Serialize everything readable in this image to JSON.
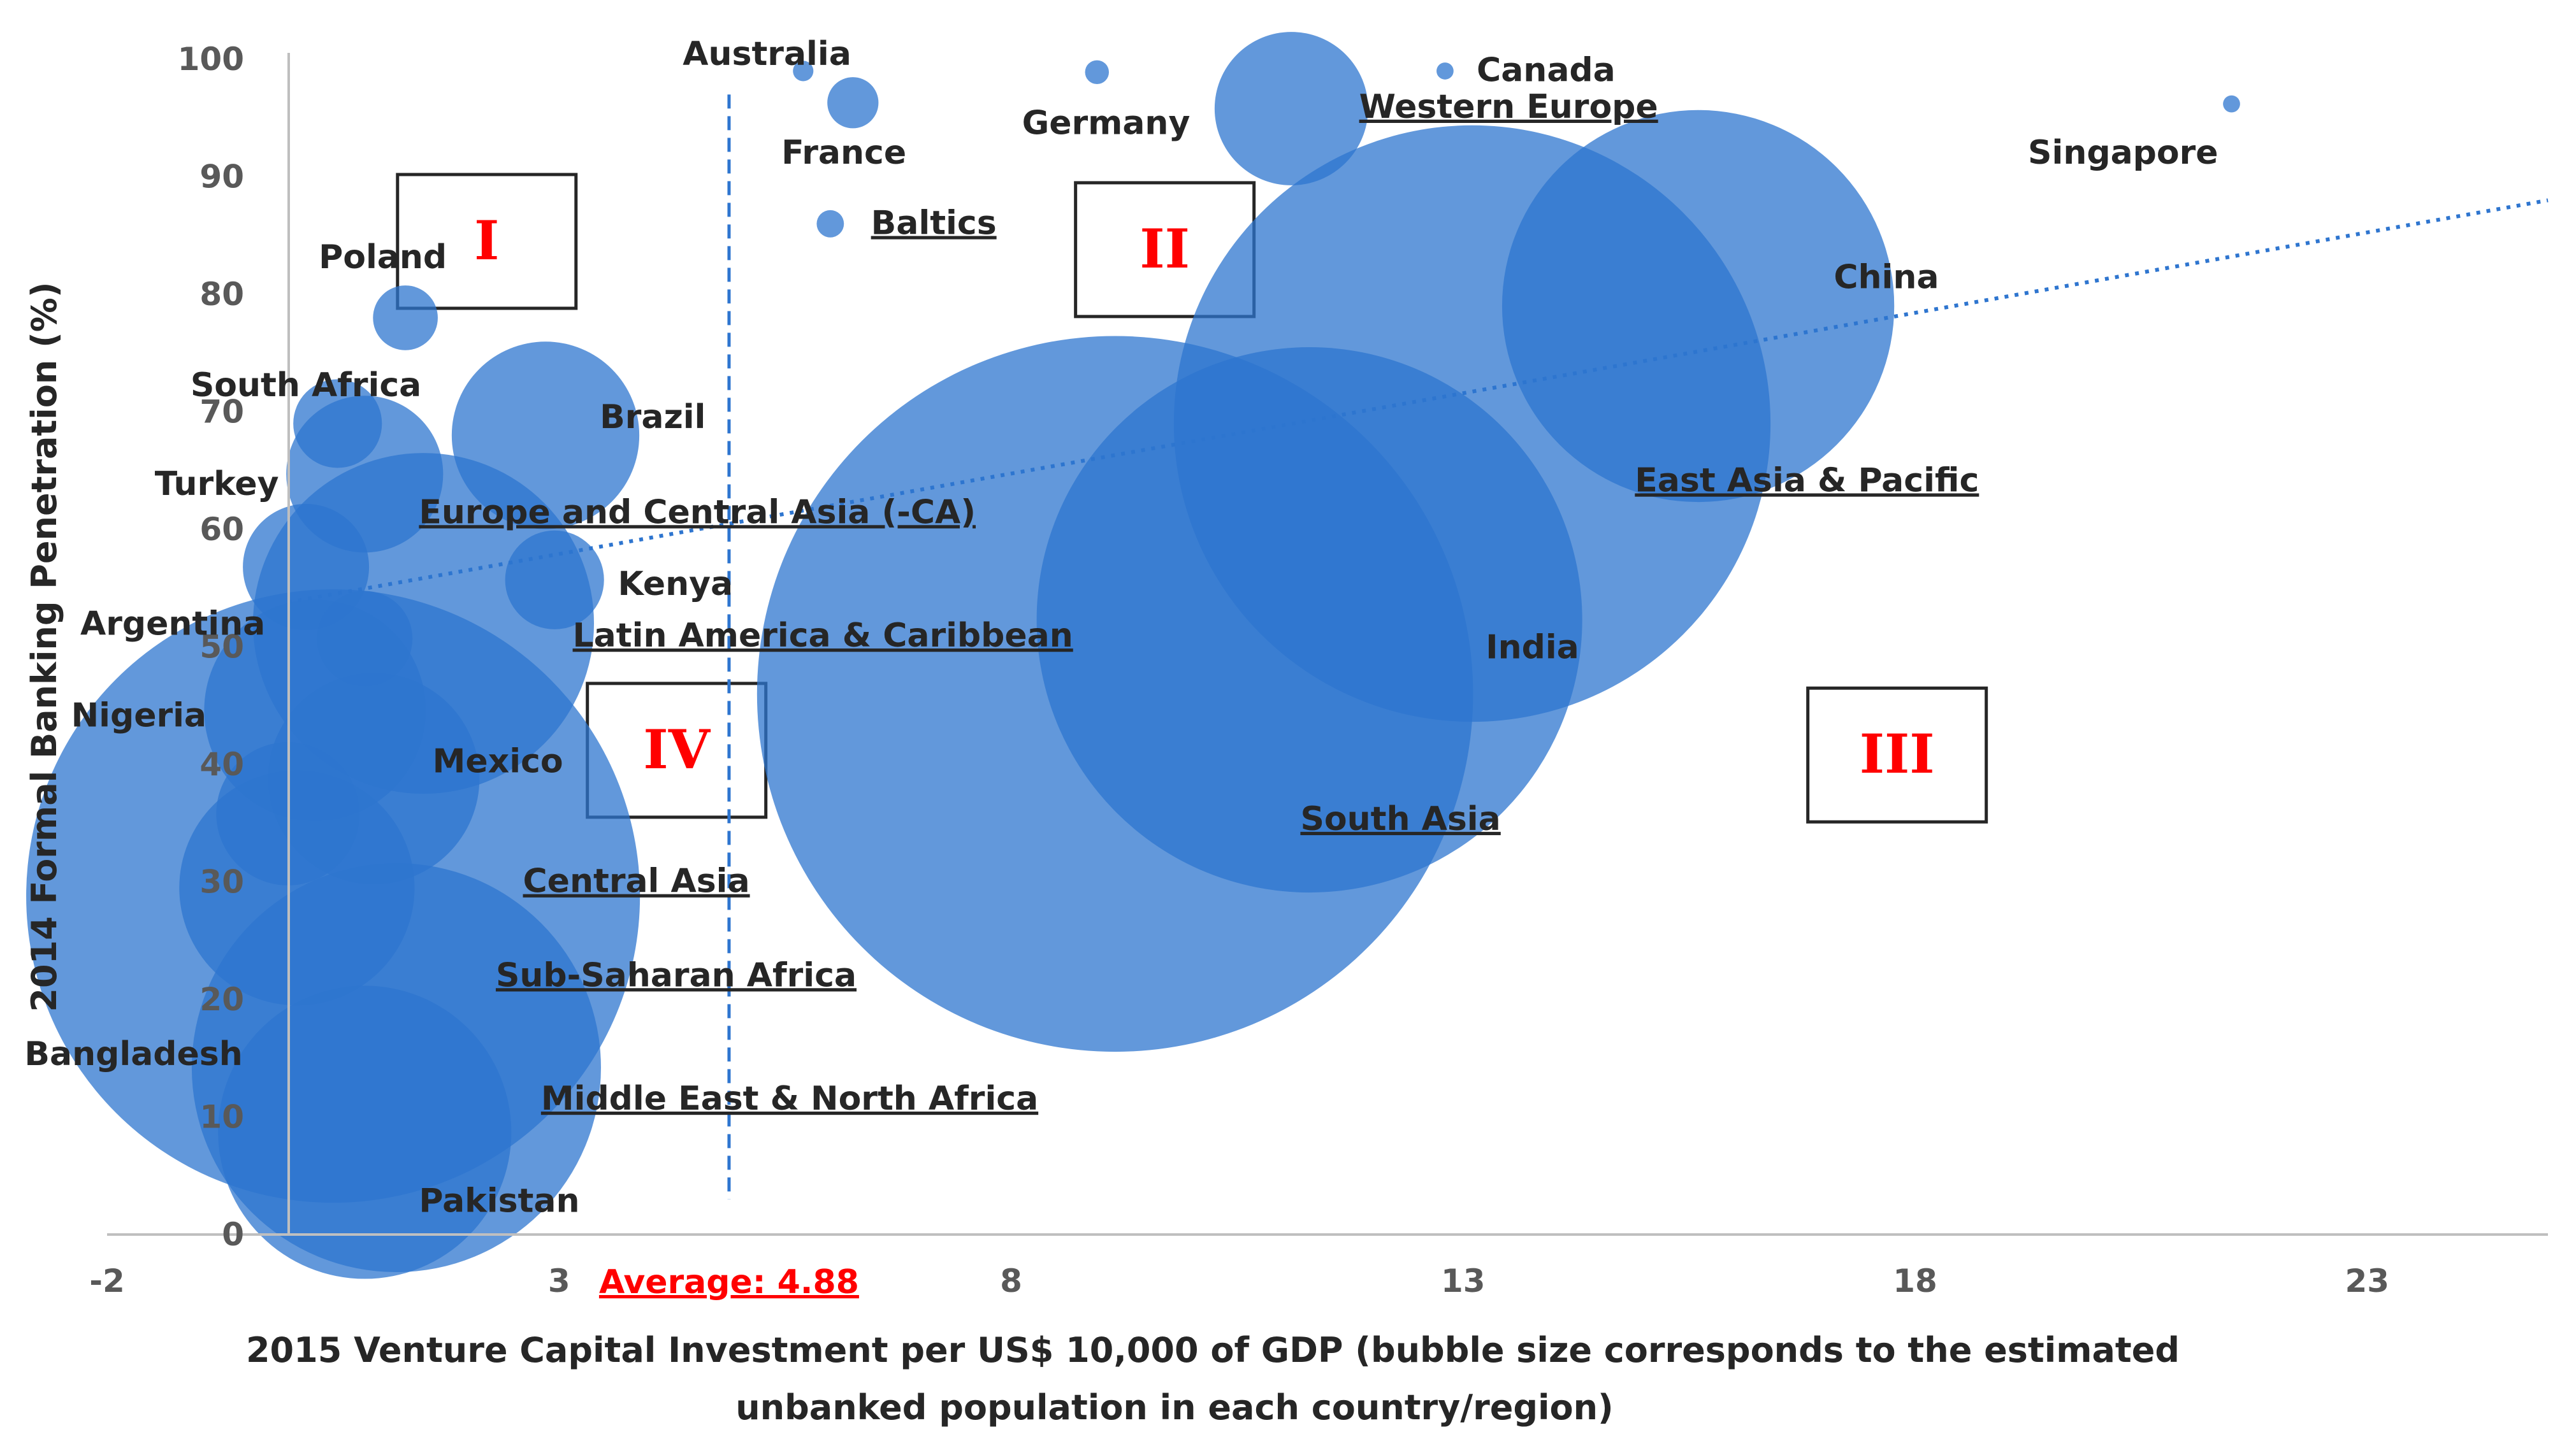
{
  "chart_data": {
    "type": "bubble",
    "xlabel": "2015 Venture Capital Investment per US$ 10,000 of GDP (bubble size corresponds to the estimated unbanked population in each country/region)",
    "xlabel_lines": [
      "2015 Venture Capital Investment per US$ 10,000 of GDP (bubble size corresponds to the estimated",
      "unbanked population in each country/region)"
    ],
    "ylabel": "2014 Formal Banking Penetration (%)",
    "xlim": [
      -2,
      25
    ],
    "ylim": [
      0,
      100
    ],
    "x_ticks": [
      "-2",
      "3",
      "8",
      "13",
      "18",
      "23"
    ],
    "y_ticks": [
      "0",
      "10",
      "20",
      "30",
      "40",
      "50",
      "60",
      "70",
      "80",
      "90",
      "100"
    ],
    "grid": false,
    "bubble_color": "#2e75cf",
    "trendline_color": "#2e75cf",
    "average": {
      "x": 4.88,
      "label": "Average: 4.88",
      "color": "#ff0000"
    },
    "quadrants": [
      {
        "label": "I",
        "x": 2.2,
        "y": 84.5
      },
      {
        "label": "II",
        "x": 9.7,
        "y": 83.8
      },
      {
        "label": "III",
        "x": 17.8,
        "y": 40.8
      },
      {
        "label": "IV",
        "x": 4.3,
        "y": 41.2
      }
    ],
    "quadrant_color": "#ff0000",
    "trendline": {
      "x": [
        0,
        25
      ],
      "y": [
        53.8,
        88
      ]
    },
    "points": [
      {
        "name": "Australia",
        "x": 5.7,
        "y": 99,
        "size": 0.6,
        "label_anchor": "middle",
        "label_dx": -0.4,
        "label_dy": 1.5
      },
      {
        "name": "France",
        "x": 6.25,
        "y": 96.3,
        "size": 1.5,
        "label_anchor": "middle",
        "label_dx": -0.1,
        "label_dy": -4.2
      },
      {
        "name": "Germany",
        "x": 8.95,
        "y": 98.9,
        "size": 0.7,
        "label_anchor": "middle",
        "label_dx": 0.1,
        "label_dy": -4.3
      },
      {
        "name": "Canada",
        "x": 12.8,
        "y": 99,
        "size": 0.5,
        "label_anchor": "start",
        "label_dx": 0.35,
        "label_dy": 0.1
      },
      {
        "name": "Western Europe",
        "x": 11.1,
        "y": 95.8,
        "size": 4.5,
        "underline": true,
        "label_anchor": "start",
        "label_dx": 0.75,
        "label_dy": 0.2
      },
      {
        "name": "Singapore",
        "x": 21.5,
        "y": 96.2,
        "size": 0.5,
        "label_anchor": "middle",
        "label_dx": -1.2,
        "label_dy": -4.1
      },
      {
        "name": "Baltics",
        "x": 6.0,
        "y": 86,
        "size": 0.8,
        "underline": true,
        "label_anchor": "start",
        "label_dx": 0.45,
        "label_dy": 0.1
      },
      {
        "name": "Poland",
        "x": 1.3,
        "y": 78,
        "size": 1.9,
        "label_anchor": "middle",
        "label_dx": -0.25,
        "label_dy": 5.2
      },
      {
        "name": "South Africa",
        "x": 0.55,
        "y": 69,
        "size": 2.6,
        "label_anchor": "middle",
        "label_dx": -0.35,
        "label_dy": 3.3
      },
      {
        "name": "Brazil",
        "x": 2.85,
        "y": 68,
        "size": 5.5,
        "label_anchor": "start",
        "label_dx": 0.6,
        "label_dy": 1.6
      },
      {
        "name": "Turkey",
        "x": 0.85,
        "y": 64.7,
        "size": 4.6,
        "label_anchor": "end",
        "label_dx": -0.95,
        "label_dy": -0.8
      },
      {
        "name": "Europe and Central Asia (-CA)",
        "x": 1.5,
        "y": 52,
        "size": 10,
        "underline": true,
        "label_anchor": "start",
        "label_dx": -0.05,
        "label_dy": 9.5
      },
      {
        "name": "Kenya",
        "x": 2.95,
        "y": 55.7,
        "size": 2.9,
        "label_anchor": "start",
        "label_dx": 0.7,
        "label_dy": -0.3
      },
      {
        "name": "Argentina",
        "x": 0.2,
        "y": 56.8,
        "size": 3.7,
        "label_anchor": "end",
        "label_dx": -0.45,
        "label_dy": -4.8
      },
      {
        "name": "Latin America & Caribbean",
        "x": 0.85,
        "y": 50.7,
        "size": 2.8,
        "underline": true,
        "label_anchor": "start",
        "label_dx": 2.3,
        "label_dy": 0.3
      },
      {
        "name": "Nigeria",
        "x": 0.3,
        "y": 44.6,
        "size": 6.5,
        "label_anchor": "end",
        "label_dx": -1.2,
        "label_dy": -0.4
      },
      {
        "name": "Mexico",
        "x": 0.95,
        "y": 38.8,
        "size": 6.2,
        "label_anchor": "start",
        "label_dx": 0.65,
        "label_dy": 1.5
      },
      {
        "name": "",
        "x": 0,
        "y": 35.8,
        "size": 4.2
      },
      {
        "name": "Central Asia",
        "x": 0.1,
        "y": 29.5,
        "size": 6.9,
        "underline": true,
        "label_anchor": "start",
        "label_dx": 2.5,
        "label_dy": 0.6
      },
      {
        "name": "Sub-Saharan Africa",
        "x": 0.5,
        "y": 28.8,
        "size": 18,
        "underline": true,
        "label_anchor": "start",
        "label_dx": 1.8,
        "label_dy": -6.7
      },
      {
        "name": "Bangladesh",
        "x": 1.2,
        "y": 14.2,
        "size": 12,
        "label_anchor": "end",
        "label_dx": -1.7,
        "label_dy": 1.2
      },
      {
        "name": "Middle East & North Africa",
        "x": 1.2,
        "y": 14.2,
        "size": 0,
        "underline": true,
        "label_anchor": "start",
        "label_dx": 1.6,
        "label_dy": -2.6
      },
      {
        "name": "Pakistan",
        "x": 0.85,
        "y": 8.7,
        "size": 8.6,
        "label_anchor": "start",
        "label_dx": 0.6,
        "label_dy": -5.8
      },
      {
        "name": "South Asia",
        "x": 9.15,
        "y": 46,
        "size": 21,
        "underline": true,
        "label_anchor": "start",
        "label_dx": 2.05,
        "label_dy": -10.6
      },
      {
        "name": "India",
        "x": 11.3,
        "y": 52.3,
        "size": 16,
        "label_anchor": "start",
        "label_dx": 1.95,
        "label_dy": -2.3
      },
      {
        "name": "East Asia & Pacific",
        "x": 13.1,
        "y": 69,
        "size": 17.5,
        "underline": true,
        "label_anchor": "start",
        "label_dx": 1.8,
        "label_dy": -4.8
      },
      {
        "name": "China",
        "x": 15.6,
        "y": 79,
        "size": 11.5,
        "label_anchor": "start",
        "label_dx": 1.5,
        "label_dy": 2.5
      }
    ]
  }
}
